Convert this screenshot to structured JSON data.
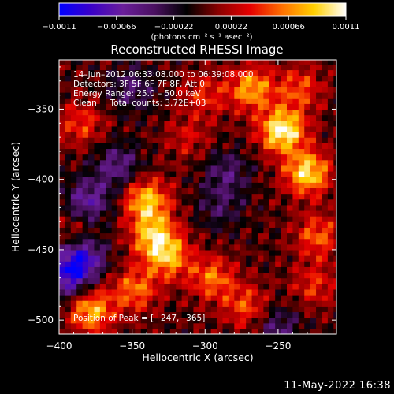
{
  "footer": {
    "date": "11-May-2022 16:38"
  },
  "chart_data": {
    "type": "heatmap",
    "title": "Reconstructed RHESSI Image",
    "xlabel": "Heliocentric X (arcsec)",
    "ylabel": "Heliocentric Y (arcsec)",
    "xlim": [
      -400,
      -210
    ],
    "ylim": [
      -510,
      -315
    ],
    "xticks": [
      -400,
      -350,
      -300,
      -250
    ],
    "xtick_labels": [
      "−400",
      "−350",
      "−300",
      "−250"
    ],
    "yticks": [
      -350,
      -400,
      -450,
      -500
    ],
    "ytick_labels": [
      "−350",
      "−400",
      "−450",
      "−500"
    ],
    "info_lines": [
      "14–Jun–2012 06:33:08.000 to 06:39:08.000",
      "Detectors: 3F 5F 6F 7F 8F, Att 0",
      "Energy Range: 25.0 – 50.0 keV",
      "Clean     Total counts: 3.72E+03"
    ],
    "peak_label": "Position of Peak = [−247,−365]",
    "peak": [
      -247,
      -365
    ],
    "colorbar": {
      "range": [
        -0.0011,
        0.0011
      ],
      "ticks": [
        -0.0011,
        -0.00066,
        -0.00022,
        0.00022,
        0.00066,
        0.0011
      ],
      "tick_labels": [
        "−0.0011",
        "−0.00066",
        "−0.00022",
        "0.00022",
        "0.00066",
        "0.0011"
      ],
      "units": "(photons cm⁻² s⁻¹ asec⁻²)",
      "colormap": [
        "#0000ff",
        "#3a00c8",
        "#6a1e9a",
        "#4a1060",
        "#000000",
        "#8a0000",
        "#e60000",
        "#ff7000",
        "#ffd000",
        "#ffffff"
      ]
    },
    "sources": [
      {
        "x": -247,
        "y": -365,
        "value": 0.0011
      },
      {
        "x": -230,
        "y": -395,
        "value": 0.00095
      },
      {
        "x": -340,
        "y": -415,
        "value": 0.00085
      },
      {
        "x": -335,
        "y": -440,
        "value": 0.0008
      },
      {
        "x": -325,
        "y": -455,
        "value": 0.0007
      },
      {
        "x": -378,
        "y": -493,
        "value": 0.0008
      },
      {
        "x": -348,
        "y": -478,
        "value": 0.0006
      },
      {
        "x": -268,
        "y": -335,
        "value": 0.00075
      },
      {
        "x": -295,
        "y": -470,
        "value": 0.0006
      },
      {
        "x": -272,
        "y": -490,
        "value": 0.0005
      },
      {
        "x": -223,
        "y": -440,
        "value": 0.00055
      },
      {
        "x": -225,
        "y": -475,
        "value": 0.0004
      },
      {
        "x": -235,
        "y": -335,
        "value": 0.0005
      },
      {
        "x": -300,
        "y": -340,
        "value": 0.0004
      },
      {
        "x": -312,
        "y": -370,
        "value": 0.0003
      },
      {
        "x": -385,
        "y": -360,
        "value": 0.00045
      },
      {
        "x": -390,
        "y": -440,
        "value": 0.00035
      },
      {
        "x": -380,
        "y": -415,
        "value": -0.0006
      },
      {
        "x": -385,
        "y": -455,
        "value": -0.0009
      },
      {
        "x": -395,
        "y": -470,
        "value": -0.0007
      },
      {
        "x": -360,
        "y": -390,
        "value": -0.0005
      },
      {
        "x": -285,
        "y": -395,
        "value": -0.0004
      },
      {
        "x": -350,
        "y": -335,
        "value": -0.0004
      },
      {
        "x": -290,
        "y": -420,
        "value": -0.0003
      },
      {
        "x": -250,
        "y": -505,
        "value": -0.0004
      }
    ]
  }
}
